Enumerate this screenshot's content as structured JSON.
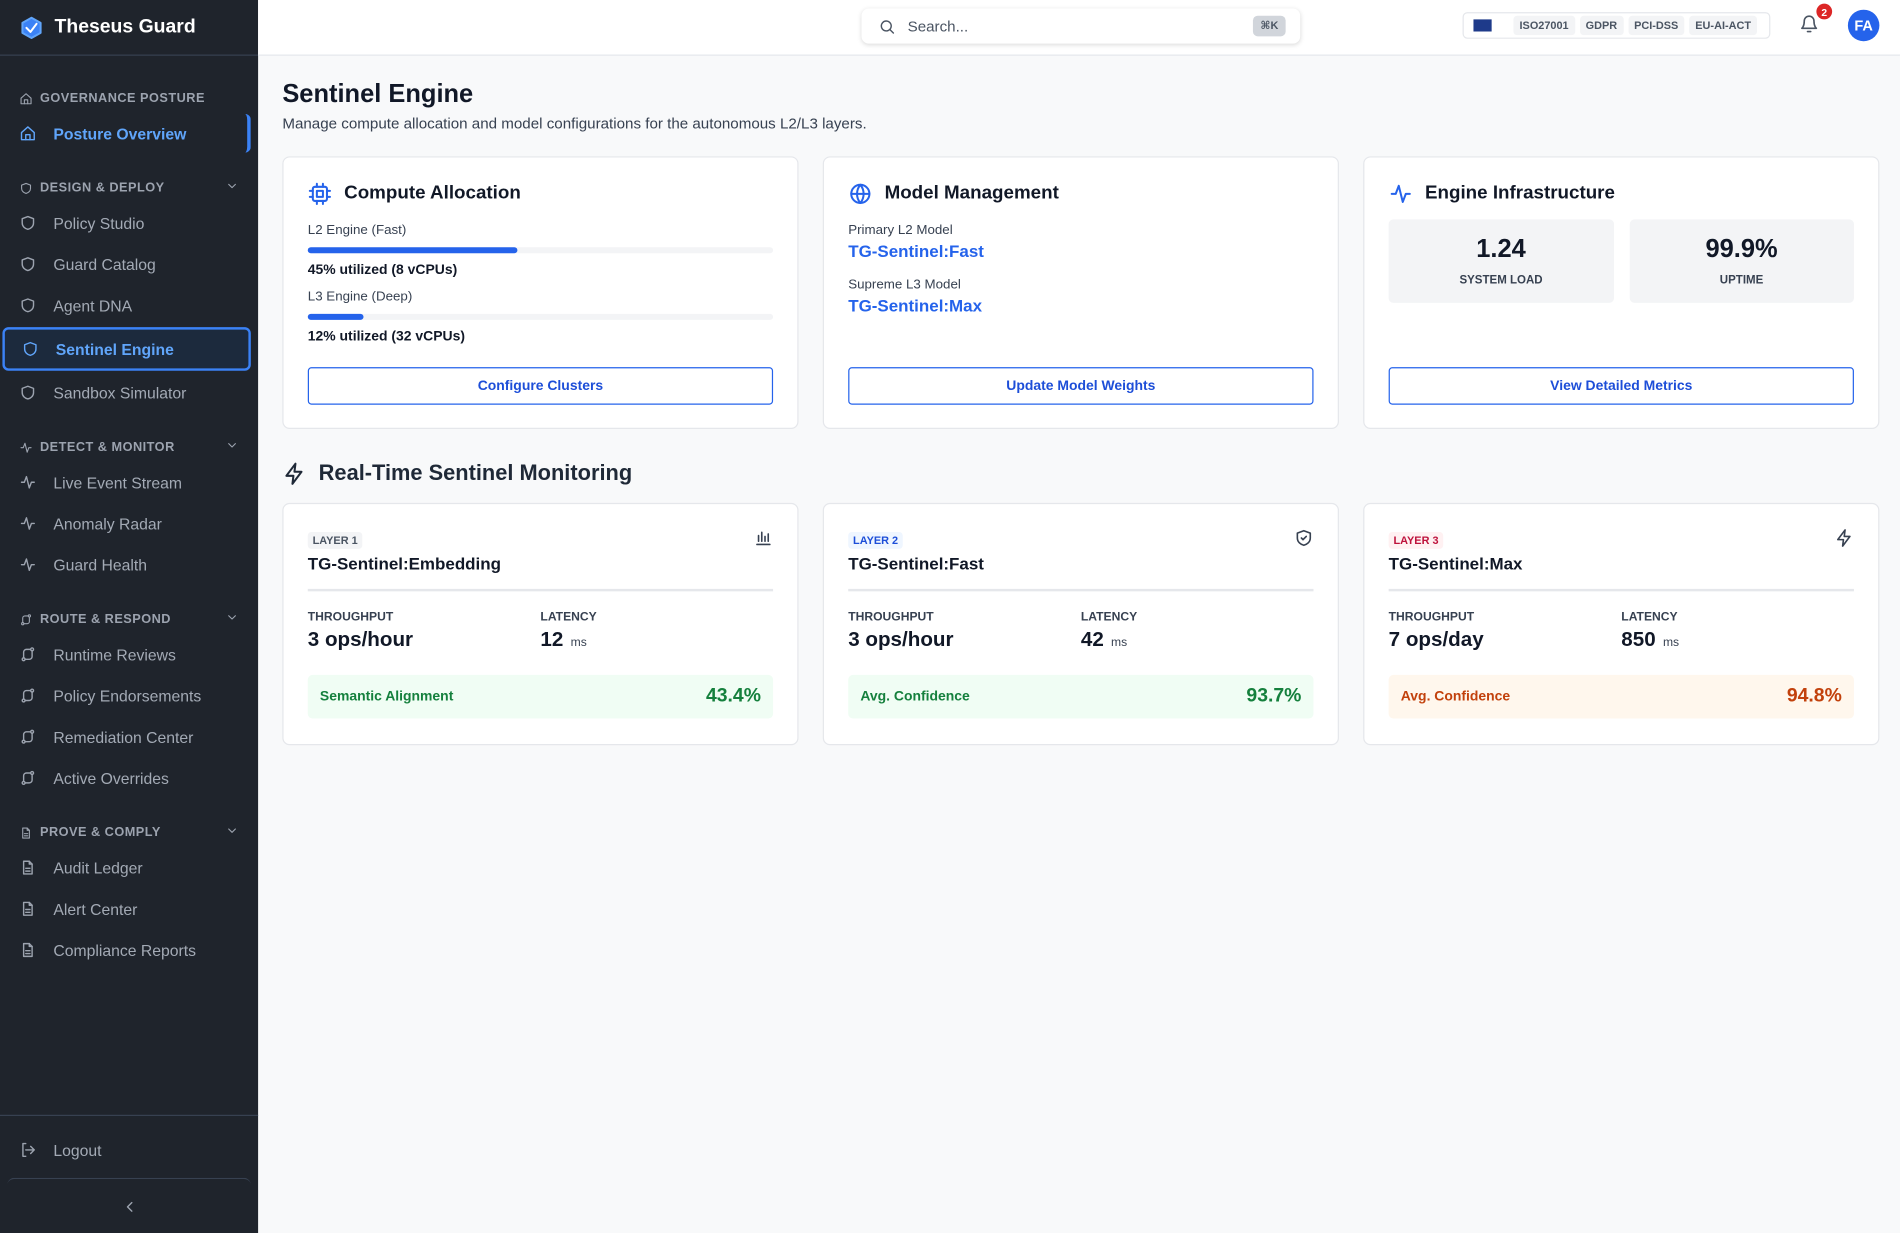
{
  "sidebar": {
    "brand": "Theseus Guard",
    "sections": [
      {
        "title": "GOVERNANCE POSTURE",
        "items": [
          "Posture Overview"
        ]
      },
      {
        "title": "DESIGN & DEPLOY",
        "items": [
          "Policy Studio",
          "Guard Catalog",
          "Agent DNA",
          "Sentinel Engine",
          "Sandbox Simulator"
        ]
      },
      {
        "title": "DETECT & MONITOR",
        "items": [
          "Live Event Stream",
          "Anomaly Radar",
          "Guard Health"
        ]
      },
      {
        "title": "ROUTE & RESPOND",
        "items": [
          "Runtime Reviews",
          "Policy Endorsements",
          "Remediation Center",
          "Active Overrides"
        ]
      },
      {
        "title": "PROVE & COMPLY",
        "items": [
          "Audit Ledger",
          "Alert Center",
          "Compliance Reports"
        ]
      }
    ],
    "logout": "Logout"
  },
  "topbar": {
    "search": "Search...",
    "shortcut": "⌘K",
    "badges": [
      "ISO27001",
      "GDPR",
      "PCI-DSS",
      "EU-AI-ACT"
    ],
    "notifications": 2,
    "avatar": "FA"
  },
  "page": {
    "title": "Sentinel Engine",
    "subtitle": "Manage compute allocation and model configurations for the autonomous L2/L3 layers."
  },
  "compute": {
    "title": "Compute Allocation",
    "engines": [
      {
        "name": "L2 Engine (Fast)",
        "utilized": 45,
        "label": "45% utilized (8 vCPUs)"
      },
      {
        "name": "L3 Engine (Deep)",
        "utilized": 12,
        "label": "12% utilized (32 vCPUs)"
      }
    ],
    "button": "Configure Clusters"
  },
  "models": {
    "title": "Model Management",
    "items": [
      {
        "label": "Primary L2 Model",
        "value": "TG-Sentinel:Fast"
      },
      {
        "label": "Supreme L3 Model",
        "value": "TG-Sentinel:Max"
      }
    ],
    "button": "Update Model Weights"
  },
  "infra": {
    "title": "Engine Infrastructure",
    "stats": [
      {
        "value": "1.24",
        "label": "SYSTEM LOAD"
      },
      {
        "value": "99.9%",
        "label": "UPTIME"
      }
    ],
    "button": "View Detailed Metrics"
  },
  "monitoring": {
    "title": "Real-Time Sentinel Monitoring",
    "layers": [
      {
        "tag": "LAYER 1",
        "model": "TG-Sentinel:Embedding",
        "throughput_label": "THROUGHPUT",
        "throughput": "3 ops/hour",
        "latency_label": "LATENCY",
        "latency": 12,
        "unit": "ms",
        "metric": "Semantic Alignment",
        "metric_value": "43.4%",
        "tag_color": "#4b5563",
        "tag_bg": "#f3f4f6",
        "metric_color": "#15803d",
        "metric_bg": "#f0fdf4"
      },
      {
        "tag": "LAYER 2",
        "model": "TG-Sentinel:Fast",
        "throughput_label": "THROUGHPUT",
        "throughput": "3 ops/hour",
        "latency_label": "LATENCY",
        "latency": 42,
        "unit": "ms",
        "metric": "Avg. Confidence",
        "metric_value": "93.7%",
        "tag_color": "#1d4ed8",
        "tag_bg": "#eff6ff",
        "metric_color": "#15803d",
        "metric_bg": "#f0fdf4"
      },
      {
        "tag": "LAYER 3",
        "model": "TG-Sentinel:Max",
        "throughput_label": "THROUGHPUT",
        "throughput": "7 ops/day",
        "latency_label": "LATENCY",
        "latency": 850,
        "unit": "ms",
        "metric": "Avg. Confidence",
        "metric_value": "94.8%",
        "tag_color": "#be123c",
        "tag_bg": "#fff1f2",
        "metric_color": "#c2410c",
        "metric_bg": "#fff7ed"
      }
    ]
  }
}
